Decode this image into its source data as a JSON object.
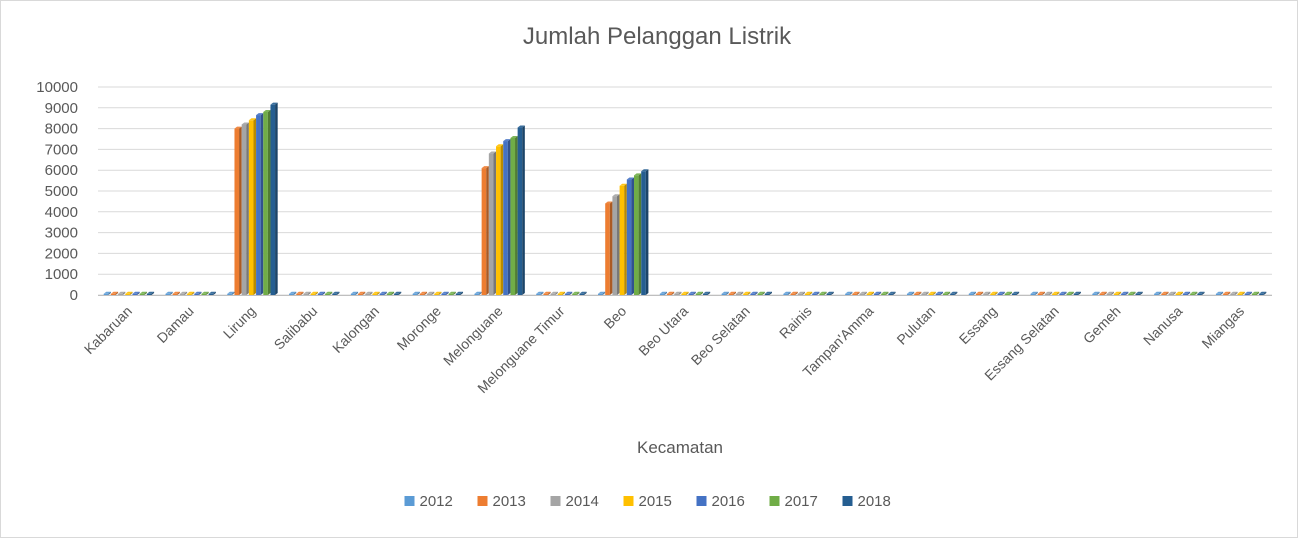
{
  "chart_data": {
    "type": "bar",
    "title": "Jumlah Pelanggan Listrik",
    "xlabel": "Kecamatan",
    "ylabel": "",
    "ylim": [
      0,
      10000
    ],
    "yticks": [
      0,
      1000,
      2000,
      3000,
      4000,
      5000,
      6000,
      7000,
      8000,
      9000,
      10000
    ],
    "grid": true,
    "legend_position": "bottom",
    "categories": [
      "Kabaruan",
      "Damau",
      "Lirung",
      "Salibabu",
      "Kalongan",
      "Moronge",
      "Melonguane",
      "Melonguane Timur",
      "Beo",
      "Beo Utara",
      "Beo Selatan",
      "Rainis",
      "Tampan'Amma",
      "Pulutan",
      "Essang",
      "Essang Selatan",
      "Gemeh",
      "Nanusa",
      "Miangas"
    ],
    "series": [
      {
        "name": "2012",
        "color": "#5b9bd5",
        "values": [
          0,
          0,
          0,
          0,
          0,
          0,
          0,
          0,
          0,
          0,
          0,
          0,
          0,
          0,
          0,
          0,
          0,
          0,
          0
        ]
      },
      {
        "name": "2013",
        "color": "#ed7d31",
        "values": [
          0,
          0,
          8000,
          0,
          0,
          0,
          6100,
          0,
          4400,
          0,
          0,
          0,
          0,
          0,
          0,
          0,
          0,
          0,
          0
        ]
      },
      {
        "name": "2014",
        "color": "#a5a5a5",
        "values": [
          0,
          0,
          8200,
          0,
          0,
          0,
          6800,
          0,
          4750,
          0,
          0,
          0,
          0,
          0,
          0,
          0,
          0,
          0,
          0
        ]
      },
      {
        "name": "2015",
        "color": "#ffc000",
        "values": [
          0,
          0,
          8400,
          0,
          0,
          0,
          7150,
          0,
          5250,
          0,
          0,
          0,
          0,
          0,
          0,
          0,
          0,
          0,
          0
        ]
      },
      {
        "name": "2016",
        "color": "#4472c4",
        "values": [
          0,
          0,
          8650,
          0,
          0,
          0,
          7400,
          0,
          5550,
          0,
          0,
          0,
          0,
          0,
          0,
          0,
          0,
          0,
          0
        ]
      },
      {
        "name": "2017",
        "color": "#70ad47",
        "values": [
          0,
          0,
          8800,
          0,
          0,
          0,
          7550,
          0,
          5750,
          0,
          0,
          0,
          0,
          0,
          0,
          0,
          0,
          0,
          0
        ]
      },
      {
        "name": "2018",
        "color": "#255e91",
        "values": [
          0,
          0,
          9150,
          0,
          0,
          0,
          8050,
          0,
          5950,
          0,
          0,
          0,
          0,
          0,
          0,
          0,
          0,
          0,
          0
        ]
      }
    ]
  }
}
